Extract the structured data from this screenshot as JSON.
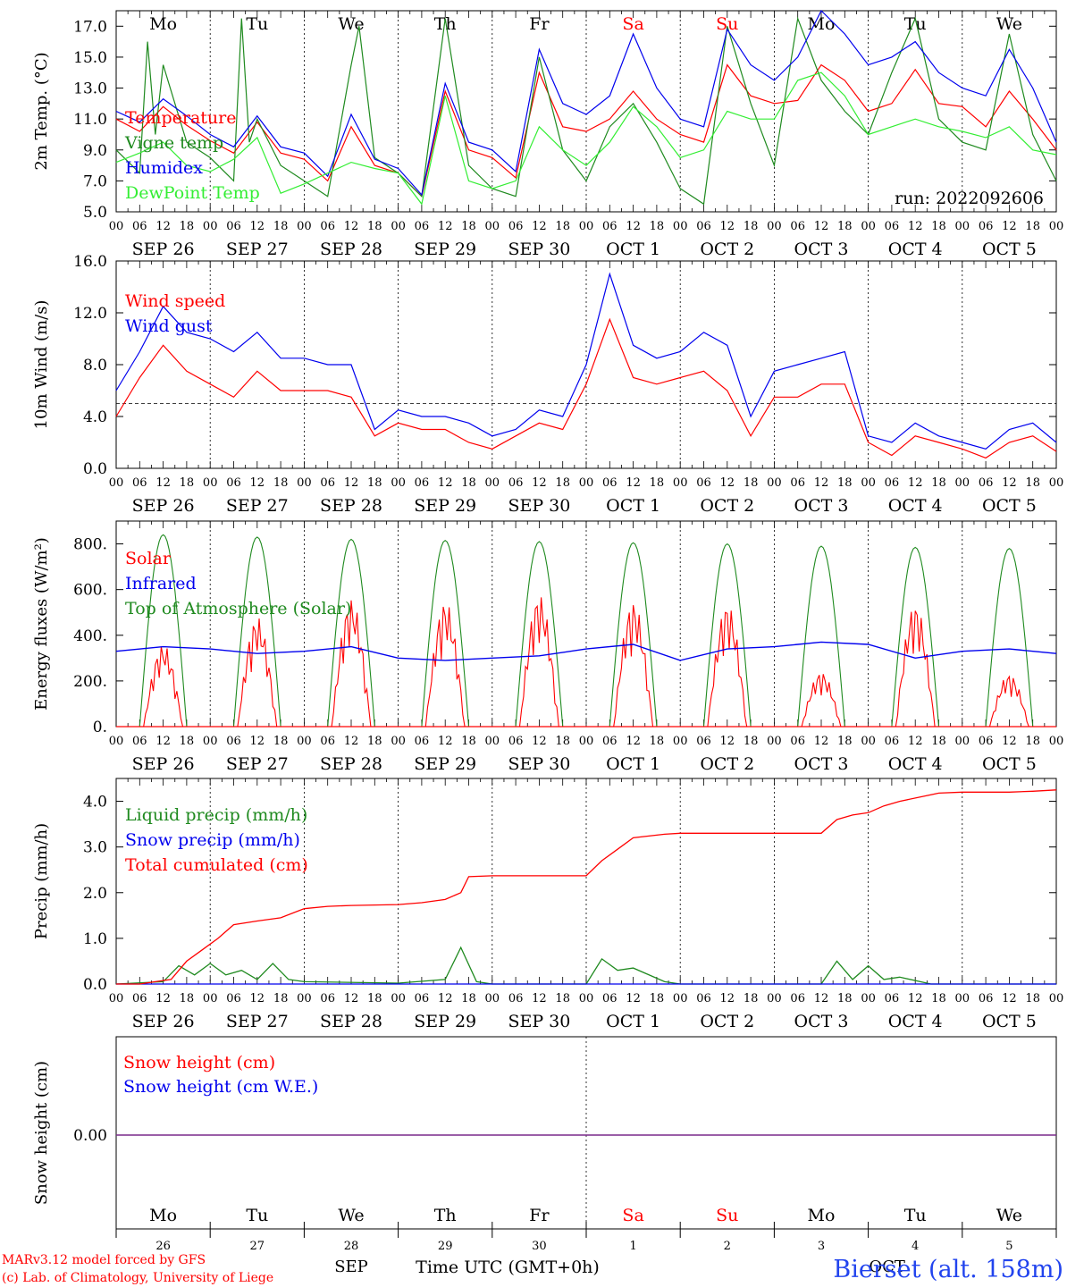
{
  "days": [
    "SEP 26",
    "SEP 27",
    "SEP 28",
    "SEP 29",
    "SEP 30",
    "OCT  1",
    "OCT  2",
    "OCT  3",
    "OCT  4",
    "OCT  5"
  ],
  "weekdays": [
    "Mo",
    "Tu",
    "We",
    "Th",
    "Fr",
    "Sa",
    "Su",
    "Mo",
    "Tu",
    "We"
  ],
  "weekday_colors": [
    "#000000",
    "#000000",
    "#000000",
    "#000000",
    "#000000",
    "#ff0000",
    "#ff0000",
    "#000000",
    "#000000",
    "#000000"
  ],
  "hour_labels": [
    "00",
    "06",
    "12",
    "18"
  ],
  "final_hour_label": "00",
  "run_label": "run: 2022092606",
  "bottom": {
    "day_numbers": [
      "26",
      "27",
      "28",
      "29",
      "30",
      "1",
      "2",
      "3",
      "4",
      "5"
    ],
    "month_left": "SEP",
    "month_right": "OCT",
    "time_axis_label": "Time UTC (GMT+0h)",
    "credit_line1": "MARv3.12 model forced by GFS",
    "credit_line2": "(c) Lab. of Climatology, University of Liege",
    "station": "Bierset (alt. 158m)"
  },
  "colors": {
    "red": "#ff0000",
    "darkgreen": "#1f8a1f",
    "blue": "#0000ee",
    "lightgreen": "#33ee33",
    "purple": "#7a2a8a",
    "black": "#000000"
  },
  "chart_data": [
    {
      "type": "line",
      "ylabel": "2m Temp. (°C)",
      "ylim": [
        5,
        18
      ],
      "yticks": [
        5.0,
        7.0,
        9.0,
        11.0,
        13.0,
        15.0,
        17.0
      ],
      "ytick_labels": [
        "5.0",
        "7.0",
        "9.0",
        "11.0",
        "13.0",
        "15.0",
        "17.0"
      ],
      "x_unit": "hours since SEP 26 00 UTC",
      "xlim": [
        0,
        240
      ],
      "series": [
        {
          "name": "Temperature",
          "color": "#ff0000",
          "x": [
            0,
            6,
            12,
            18,
            24,
            30,
            36,
            42,
            48,
            54,
            60,
            66,
            72,
            78,
            84,
            90,
            96,
            102,
            108,
            114,
            120,
            126,
            132,
            138,
            144,
            150,
            156,
            162,
            168,
            174,
            180,
            186,
            192,
            198,
            204,
            210,
            216,
            222,
            228,
            234,
            240
          ],
          "y": [
            11.0,
            10.2,
            11.8,
            10.6,
            9.6,
            8.8,
            10.8,
            8.8,
            8.4,
            7.0,
            10.5,
            8.0,
            7.5,
            6.0,
            12.8,
            9.0,
            8.5,
            7.2,
            14.0,
            10.5,
            10.2,
            11.0,
            12.8,
            11.0,
            10.0,
            9.5,
            14.5,
            12.5,
            12.0,
            12.2,
            14.5,
            13.5,
            11.5,
            12.0,
            14.2,
            12.0,
            11.8,
            10.5,
            12.8,
            11.0,
            9.0
          ]
        },
        {
          "name": "Vigne temp",
          "color": "#1f8a1f",
          "x": [
            0,
            6,
            8,
            10,
            12,
            18,
            24,
            30,
            32,
            34,
            36,
            42,
            48,
            54,
            60,
            62,
            66,
            72,
            78,
            84,
            90,
            96,
            102,
            108,
            114,
            120,
            126,
            132,
            138,
            144,
            150,
            156,
            162,
            168,
            174,
            180,
            186,
            192,
            198,
            204,
            210,
            216,
            222,
            228,
            234,
            240
          ],
          "y": [
            9.0,
            7.5,
            16.0,
            10.0,
            14.5,
            9.5,
            8.5,
            7.0,
            17.5,
            9.5,
            11.0,
            8.0,
            7.0,
            6.0,
            14.5,
            17.0,
            8.5,
            7.5,
            6.0,
            17.5,
            8.0,
            6.5,
            6.0,
            15.0,
            9.0,
            7.0,
            10.5,
            12.0,
            9.5,
            6.5,
            5.5,
            17.0,
            12.0,
            8.0,
            17.5,
            13.5,
            11.5,
            10.0,
            14.0,
            17.5,
            11.0,
            9.5,
            9.0,
            16.5,
            10.0,
            7.0
          ]
        },
        {
          "name": "Humidex",
          "color": "#0000ee",
          "x": [
            0,
            6,
            12,
            18,
            24,
            30,
            36,
            42,
            48,
            54,
            60,
            66,
            72,
            78,
            84,
            90,
            96,
            102,
            108,
            114,
            120,
            126,
            132,
            138,
            144,
            150,
            156,
            162,
            168,
            174,
            180,
            186,
            192,
            198,
            204,
            210,
            216,
            222,
            228,
            234,
            240
          ],
          "y": [
            11.5,
            10.8,
            12.3,
            11.2,
            10.0,
            9.2,
            11.2,
            9.2,
            8.8,
            7.3,
            11.3,
            8.4,
            7.8,
            6.1,
            13.3,
            9.5,
            9.0,
            7.6,
            15.5,
            12.0,
            11.3,
            12.5,
            16.5,
            13.0,
            11.0,
            10.5,
            16.8,
            14.5,
            13.5,
            15.0,
            18.0,
            16.5,
            14.5,
            15.0,
            16.0,
            14.0,
            13.0,
            12.5,
            15.5,
            13.0,
            9.5
          ]
        },
        {
          "name": "DewPoint Temp",
          "color": "#33ee33",
          "x": [
            0,
            6,
            12,
            18,
            24,
            30,
            36,
            42,
            48,
            54,
            60,
            66,
            72,
            78,
            84,
            90,
            96,
            102,
            108,
            114,
            120,
            126,
            132,
            138,
            144,
            150,
            156,
            162,
            168,
            174,
            180,
            186,
            192,
            198,
            204,
            210,
            216,
            222,
            228,
            234,
            240
          ],
          "y": [
            8.2,
            8.8,
            9.5,
            8.0,
            7.6,
            8.4,
            9.8,
            6.2,
            6.8,
            7.5,
            8.2,
            7.8,
            7.5,
            5.5,
            12.5,
            7.0,
            6.5,
            7.0,
            10.5,
            9.0,
            8.0,
            9.5,
            11.8,
            10.5,
            8.5,
            9.0,
            11.5,
            11.0,
            11.0,
            13.5,
            14.0,
            12.5,
            10.0,
            10.5,
            11.0,
            10.5,
            10.2,
            9.8,
            10.5,
            9.0,
            8.7
          ]
        }
      ]
    },
    {
      "type": "line",
      "ylabel": "10m Wind (m/s)",
      "ylim": [
        0,
        16
      ],
      "yticks": [
        0,
        4,
        8,
        12,
        16
      ],
      "ytick_labels": [
        "0.0",
        "4.0",
        "8.0",
        "12.0",
        "16.0"
      ],
      "reference_line": 5,
      "xlim": [
        0,
        240
      ],
      "series": [
        {
          "name": "Wind speed",
          "color": "#ff0000",
          "x": [
            0,
            6,
            12,
            18,
            24,
            30,
            36,
            42,
            48,
            54,
            60,
            66,
            72,
            78,
            84,
            90,
            96,
            102,
            108,
            114,
            120,
            126,
            132,
            138,
            144,
            150,
            156,
            162,
            168,
            174,
            180,
            186,
            192,
            198,
            204,
            210,
            216,
            222,
            228,
            234,
            240
          ],
          "y": [
            4.0,
            7.0,
            9.5,
            7.5,
            6.5,
            5.5,
            7.5,
            6.0,
            6.0,
            6.0,
            5.5,
            2.5,
            3.5,
            3.0,
            3.0,
            2.0,
            1.5,
            2.5,
            3.5,
            3.0,
            6.5,
            11.5,
            7.0,
            6.5,
            7.0,
            7.5,
            6.0,
            2.5,
            5.5,
            5.5,
            6.5,
            6.5,
            2.0,
            1.0,
            2.5,
            2.0,
            1.5,
            0.8,
            2.0,
            2.5,
            1.3
          ]
        },
        {
          "name": "Wind gust",
          "color": "#0000ee",
          "x": [
            0,
            6,
            12,
            18,
            24,
            30,
            36,
            42,
            48,
            54,
            60,
            66,
            72,
            78,
            84,
            90,
            96,
            102,
            108,
            114,
            120,
            126,
            132,
            138,
            144,
            150,
            156,
            162,
            168,
            174,
            180,
            186,
            192,
            198,
            204,
            210,
            216,
            222,
            228,
            234,
            240
          ],
          "y": [
            6.0,
            9.0,
            12.5,
            10.5,
            10.0,
            9.0,
            10.5,
            8.5,
            8.5,
            8.0,
            8.0,
            3.0,
            4.5,
            4.0,
            4.0,
            3.5,
            2.5,
            3.0,
            4.5,
            4.0,
            8.0,
            15.0,
            9.5,
            8.5,
            9.0,
            10.5,
            9.5,
            4.0,
            7.5,
            8.0,
            8.5,
            9.0,
            2.5,
            2.0,
            3.5,
            2.5,
            2.0,
            1.5,
            3.0,
            3.5,
            2.0
          ]
        }
      ]
    },
    {
      "type": "line",
      "ylabel": "Energy fluxes (W/m²)",
      "ylim": [
        0,
        900
      ],
      "yticks": [
        0,
        200,
        400,
        600,
        800
      ],
      "ytick_labels": [
        "0.",
        "200.",
        "400.",
        "600.",
        "800."
      ],
      "xlim": [
        0,
        240
      ],
      "series": [
        {
          "name": "Solar",
          "color": "#ff0000",
          "daily_peak": [
            360,
            480,
            560,
            550,
            580,
            550,
            540,
            240,
            540,
            230
          ]
        },
        {
          "name": "Infrared",
          "color": "#0000ee",
          "x": [
            0,
            12,
            24,
            36,
            48,
            60,
            72,
            84,
            96,
            108,
            120,
            132,
            144,
            156,
            168,
            180,
            192,
            204,
            216,
            228,
            240
          ],
          "y": [
            330,
            350,
            340,
            320,
            330,
            350,
            300,
            290,
            300,
            310,
            340,
            360,
            290,
            340,
            350,
            370,
            360,
            300,
            330,
            340,
            320
          ]
        },
        {
          "name": "Top of Atmosphere (Solar)",
          "color": "#1f8a1f",
          "daily_peak": [
            840,
            830,
            820,
            815,
            810,
            805,
            800,
            790,
            785,
            780
          ]
        }
      ]
    },
    {
      "type": "line",
      "ylabel": "Precip (mm/h)",
      "ylim": [
        0,
        4.5
      ],
      "yticks": [
        0,
        1,
        2,
        3,
        4
      ],
      "ytick_labels": [
        "0.0",
        "1.0",
        "2.0",
        "3.0",
        "4.0"
      ],
      "xlim": [
        0,
        240
      ],
      "series": [
        {
          "name": "Liquid precip (mm/h)",
          "color": "#1f8a1f",
          "x": [
            0,
            12,
            16,
            20,
            24,
            28,
            32,
            36,
            40,
            44,
            48,
            72,
            84,
            88,
            92,
            96,
            120,
            124,
            128,
            132,
            140,
            144,
            180,
            184,
            188,
            192,
            196,
            200,
            208,
            240
          ],
          "y": [
            0,
            0.05,
            0.4,
            0.2,
            0.45,
            0.2,
            0.3,
            0.1,
            0.45,
            0.1,
            0.05,
            0.02,
            0.1,
            0.8,
            0.05,
            0,
            0,
            0.55,
            0.3,
            0.35,
            0.05,
            0,
            0,
            0.5,
            0.1,
            0.4,
            0.1,
            0.15,
            0,
            0
          ]
        },
        {
          "name": "Snow precip (mm/h)",
          "color": "#0000ee",
          "x": [
            0,
            240
          ],
          "y": [
            0,
            0
          ]
        },
        {
          "name": "Total cumulated (cm)",
          "color": "#ff0000",
          "x": [
            0,
            6,
            10,
            14,
            18,
            22,
            26,
            30,
            36,
            42,
            48,
            54,
            60,
            66,
            72,
            78,
            84,
            88,
            90,
            96,
            108,
            120,
            124,
            128,
            132,
            140,
            144,
            156,
            168,
            180,
            184,
            188,
            192,
            196,
            200,
            210,
            216,
            228,
            234,
            240
          ],
          "y": [
            0,
            0,
            0.05,
            0.1,
            0.5,
            0.75,
            1.0,
            1.3,
            1.38,
            1.45,
            1.65,
            1.7,
            1.72,
            1.73,
            1.74,
            1.78,
            1.85,
            2.0,
            2.35,
            2.37,
            2.37,
            2.37,
            2.7,
            2.95,
            3.2,
            3.28,
            3.3,
            3.3,
            3.3,
            3.3,
            3.6,
            3.7,
            3.75,
            3.9,
            4.0,
            4.18,
            4.2,
            4.2,
            4.22,
            4.25
          ]
        }
      ]
    },
    {
      "type": "line",
      "ylabel": "Snow height (cm)",
      "ytick_labels": [
        "0.00"
      ],
      "xlim": [
        0,
        240
      ],
      "series": [
        {
          "name": "Snow height (cm)",
          "color": "#ff0000",
          "x": [
            0,
            240
          ],
          "y": [
            0,
            0
          ]
        },
        {
          "name": "Snow height (cm W.E.)",
          "color": "#0000ee",
          "x": [
            0,
            240
          ],
          "y": [
            0,
            0
          ]
        }
      ]
    }
  ]
}
